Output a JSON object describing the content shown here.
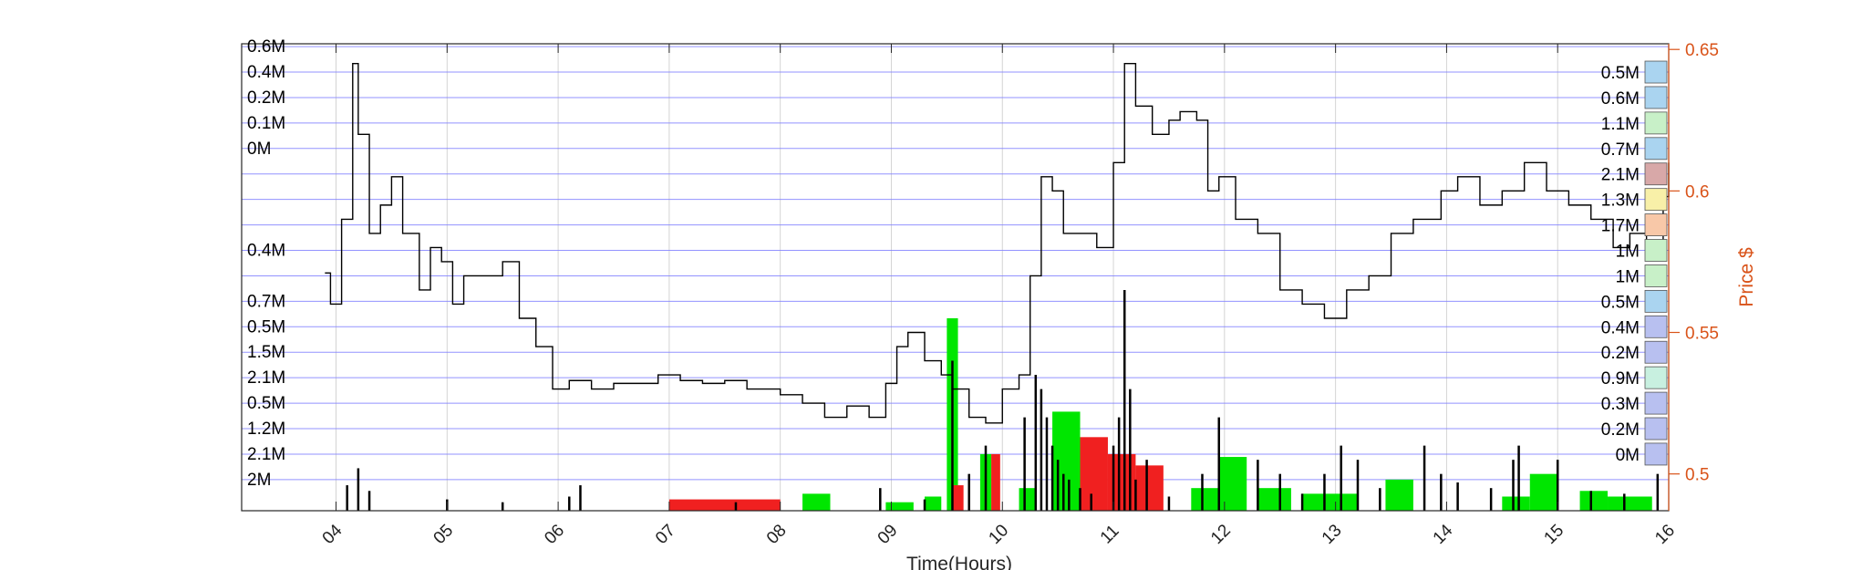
{
  "colors": {
    "grid": "#8080ff",
    "price_line": "#000000",
    "volume": "#000000",
    "buy_bars": "#00e600",
    "sell_bars": "#f02020",
    "right_axis": "#d95319"
  },
  "chart_data": {
    "type": "line",
    "title": "",
    "xlabel": "Time(Hours)",
    "ylabel_right": "Price $",
    "x_ticks": [
      "04",
      "05",
      "06",
      "07",
      "08",
      "09",
      "10",
      "11",
      "12",
      "13",
      "14",
      "15",
      "16"
    ],
    "xlim_hours": [
      3.15,
      16.0
    ],
    "ylim_right": [
      0.487,
      0.652
    ],
    "y_ticks_right": [
      0.5,
      0.55,
      0.6,
      0.65
    ],
    "grid": "vertical at hour ticks; horizontal price-level lines",
    "left_level_labels": [
      {
        "label": "0.6M",
        "price": 0.651
      },
      {
        "label": "0.4M",
        "price": 0.642
      },
      {
        "label": "0.2M",
        "price": 0.633
      },
      {
        "label": "0.1M",
        "price": 0.624
      },
      {
        "label": "0M",
        "price": 0.615
      },
      {
        "label": "0.4M",
        "price": 0.579
      },
      {
        "label": "0.7M",
        "price": 0.561
      },
      {
        "label": "0.5M",
        "price": 0.552
      },
      {
        "label": "1.5M",
        "price": 0.543
      },
      {
        "label": "2.1M",
        "price": 0.534
      },
      {
        "label": "0.5M",
        "price": 0.525
      },
      {
        "label": "1.2M",
        "price": 0.516
      },
      {
        "label": "2.1M",
        "price": 0.507
      },
      {
        "label": "2M",
        "price": 0.498
      }
    ],
    "right_level_labels": [
      {
        "label": "0.5M",
        "price": 0.642,
        "color": "#aad4f0"
      },
      {
        "label": "0.6M",
        "price": 0.633,
        "color": "#aad4f0"
      },
      {
        "label": "1.1M",
        "price": 0.624,
        "color": "#c8f0c8"
      },
      {
        "label": "0.7M",
        "price": 0.615,
        "color": "#aad4f0"
      },
      {
        "label": "2.1M",
        "price": 0.606,
        "color": "#d8a8a8"
      },
      {
        "label": "1.3M",
        "price": 0.597,
        "color": "#f8f0a8"
      },
      {
        "label": "1.7M",
        "price": 0.588,
        "color": "#f8c8a8"
      },
      {
        "label": "1M",
        "price": 0.579,
        "color": "#c8f0c8"
      },
      {
        "label": "1M",
        "price": 0.57,
        "color": "#c8f0c8"
      },
      {
        "label": "0.5M",
        "price": 0.561,
        "color": "#aad4f0"
      },
      {
        "label": "0.4M",
        "price": 0.552,
        "color": "#b8c0f0"
      },
      {
        "label": "0.2M",
        "price": 0.543,
        "color": "#b8c0f0"
      },
      {
        "label": "0.9M",
        "price": 0.534,
        "color": "#c8f0e0"
      },
      {
        "label": "0.3M",
        "price": 0.525,
        "color": "#b8c0f0"
      },
      {
        "label": "0.2M",
        "price": 0.516,
        "color": "#b8c0f0"
      },
      {
        "label": "0M",
        "price": 0.507,
        "color": "#b8c0f0"
      }
    ],
    "price_series": {
      "name": "",
      "x": [
        3.9,
        3.95,
        4.05,
        4.15,
        4.2,
        4.3,
        4.4,
        4.5,
        4.6,
        4.75,
        4.85,
        4.95,
        5.05,
        5.15,
        5.3,
        5.5,
        5.65,
        5.8,
        5.95,
        6.0,
        6.1,
        6.3,
        6.5,
        6.7,
        6.9,
        7.1,
        7.3,
        7.5,
        7.7,
        7.9,
        8.0,
        8.2,
        8.4,
        8.6,
        8.8,
        8.95,
        9.05,
        9.15,
        9.3,
        9.45,
        9.55,
        9.7,
        9.85,
        10.0,
        10.15,
        10.25,
        10.35,
        10.45,
        10.55,
        10.7,
        10.85,
        11.0,
        11.1,
        11.2,
        11.35,
        11.5,
        11.6,
        11.75,
        11.85,
        11.95,
        12.1,
        12.3,
        12.5,
        12.7,
        12.9,
        13.1,
        13.3,
        13.5,
        13.7,
        13.85,
        13.95,
        14.1,
        14.3,
        14.5,
        14.7,
        14.9,
        15.1,
        15.3,
        15.5,
        15.65,
        15.8,
        15.95,
        16.0
      ],
      "y": [
        0.571,
        0.56,
        0.59,
        0.645,
        0.62,
        0.585,
        0.595,
        0.605,
        0.585,
        0.565,
        0.58,
        0.575,
        0.56,
        0.57,
        0.57,
        0.575,
        0.555,
        0.545,
        0.53,
        0.53,
        0.533,
        0.53,
        0.532,
        0.532,
        0.535,
        0.533,
        0.532,
        0.533,
        0.53,
        0.53,
        0.528,
        0.525,
        0.52,
        0.524,
        0.52,
        0.532,
        0.545,
        0.55,
        0.54,
        0.535,
        0.53,
        0.52,
        0.518,
        0.53,
        0.535,
        0.57,
        0.605,
        0.6,
        0.585,
        0.585,
        0.58,
        0.61,
        0.645,
        0.63,
        0.62,
        0.625,
        0.628,
        0.625,
        0.6,
        0.605,
        0.59,
        0.585,
        0.565,
        0.56,
        0.555,
        0.565,
        0.57,
        0.585,
        0.59,
        0.59,
        0.6,
        0.605,
        0.595,
        0.6,
        0.61,
        0.6,
        0.595,
        0.59,
        0.58,
        0.585,
        0.582,
        0.598,
        0.61
      ]
    },
    "buy_bars": [
      {
        "x0": 8.2,
        "x1": 8.45,
        "height_price": 0.493
      },
      {
        "x0": 8.95,
        "x1": 9.2,
        "height_price": 0.49
      },
      {
        "x0": 9.3,
        "x1": 9.45,
        "height_price": 0.492
      },
      {
        "x0": 9.5,
        "x1": 9.6,
        "height_price": 0.555
      },
      {
        "x0": 9.8,
        "x1": 9.9,
        "height_price": 0.507
      },
      {
        "x0": 10.15,
        "x1": 10.3,
        "height_price": 0.495
      },
      {
        "x0": 10.45,
        "x1": 10.7,
        "height_price": 0.522
      },
      {
        "x0": 11.7,
        "x1": 11.95,
        "height_price": 0.495
      },
      {
        "x0": 11.95,
        "x1": 12.2,
        "height_price": 0.506
      },
      {
        "x0": 12.3,
        "x1": 12.6,
        "height_price": 0.495
      },
      {
        "x0": 12.7,
        "x1": 13.2,
        "height_price": 0.493
      },
      {
        "x0": 13.45,
        "x1": 13.7,
        "height_price": 0.498
      },
      {
        "x0": 14.5,
        "x1": 14.75,
        "height_price": 0.492
      },
      {
        "x0": 14.75,
        "x1": 15.0,
        "height_price": 0.5
      },
      {
        "x0": 15.2,
        "x1": 15.45,
        "height_price": 0.494
      },
      {
        "x0": 15.45,
        "x1": 15.85,
        "height_price": 0.492
      }
    ],
    "sell_bars": [
      {
        "x0": 7.0,
        "x1": 8.0,
        "height_price": 0.491
      },
      {
        "x0": 9.55,
        "x1": 9.65,
        "height_price": 0.496
      },
      {
        "x0": 9.9,
        "x1": 9.98,
        "height_price": 0.507
      },
      {
        "x0": 10.7,
        "x1": 10.95,
        "height_price": 0.513
      },
      {
        "x0": 10.95,
        "x1": 11.2,
        "height_price": 0.507
      },
      {
        "x0": 11.2,
        "x1": 11.45,
        "height_price": 0.503
      }
    ],
    "volume_spikes": {
      "x": [
        4.1,
        4.2,
        4.3,
        5.0,
        5.5,
        6.1,
        6.2,
        7.6,
        8.9,
        9.3,
        9.55,
        9.7,
        9.85,
        10.2,
        10.3,
        10.35,
        10.4,
        10.45,
        10.5,
        10.55,
        10.6,
        10.7,
        10.8,
        11.0,
        11.05,
        11.1,
        11.15,
        11.2,
        11.3,
        11.5,
        11.8,
        11.95,
        12.3,
        12.5,
        12.7,
        12.9,
        13.05,
        13.2,
        13.4,
        13.8,
        13.95,
        14.1,
        14.4,
        14.6,
        14.65,
        15.0,
        15.3,
        15.6,
        15.9
      ],
      "y": [
        0.496,
        0.502,
        0.494,
        0.491,
        0.49,
        0.492,
        0.496,
        0.49,
        0.495,
        0.491,
        0.54,
        0.5,
        0.51,
        0.52,
        0.535,
        0.53,
        0.52,
        0.51,
        0.505,
        0.5,
        0.498,
        0.495,
        0.493,
        0.51,
        0.52,
        0.565,
        0.53,
        0.498,
        0.505,
        0.492,
        0.5,
        0.52,
        0.505,
        0.5,
        0.493,
        0.5,
        0.51,
        0.505,
        0.495,
        0.51,
        0.5,
        0.497,
        0.495,
        0.505,
        0.51,
        0.505,
        0.494,
        0.493,
        0.5
      ]
    }
  }
}
